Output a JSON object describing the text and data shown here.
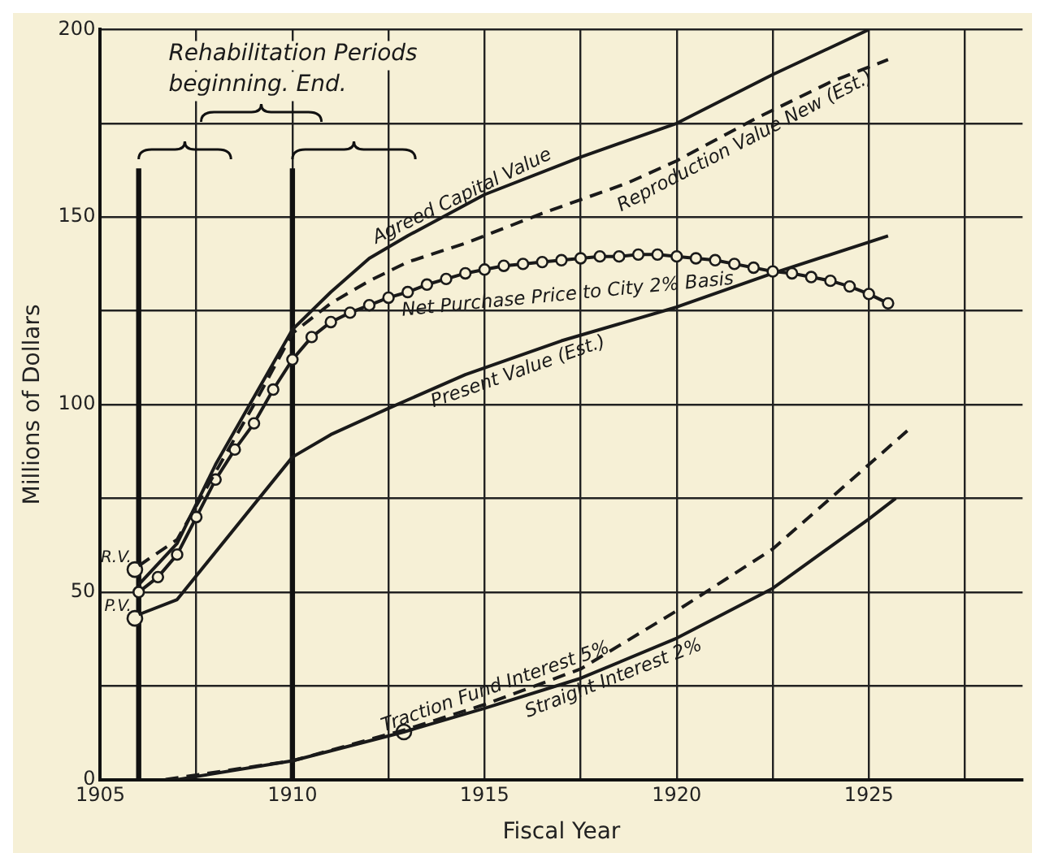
{
  "chart_data": {
    "type": "line",
    "xlabel": "Fiscal Year",
    "ylabel": "Millions of Dollars",
    "xlim": [
      1905,
      1929
    ],
    "ylim": [
      0,
      200
    ],
    "xticks": [
      1905,
      {
        "value": 1907.5,
        "label": null
      },
      1910,
      {
        "value": 1912.5,
        "label": null
      },
      1915,
      {
        "value": 1917.5,
        "label": null
      },
      1920,
      {
        "value": 1922.5,
        "label": null
      },
      1925,
      {
        "value": 1927.5,
        "label": null
      }
    ],
    "yticks": [
      0,
      {
        "value": 25,
        "label": null
      },
      50,
      {
        "value": 75,
        "label": null
      },
      100,
      {
        "value": 125,
        "label": null
      },
      150,
      {
        "value": 175,
        "label": null
      },
      200
    ],
    "grid": true,
    "legend": false,
    "series": [
      {
        "name": "Agreed Capital Value",
        "color": "#1a1a1a",
        "line_style": "solid",
        "marker": "none",
        "x": [
          1906,
          1907,
          1908,
          1909,
          1910,
          1911,
          1912,
          1913,
          1915,
          1917.5,
          1920,
          1922.5,
          1925
        ],
        "values": [
          52,
          63,
          84,
          102,
          120,
          130,
          139,
          145,
          156,
          166,
          175,
          188,
          200
        ]
      },
      {
        "name": "Reproduction Value New (Est.)",
        "color": "#1a1a1a",
        "line_style": "dashed",
        "marker": "none",
        "x": [
          1906,
          1907,
          1908,
          1909,
          1910,
          1911,
          1912,
          1913,
          1914.5,
          1916.5,
          1918.7,
          1920,
          1922,
          1924,
          1925.5
        ],
        "values": [
          57,
          64,
          82,
          100,
          119,
          127,
          133,
          138,
          143,
          151,
          159,
          165,
          176,
          186,
          192
        ]
      },
      {
        "name": "Net Purchase Price to City 2% Basis",
        "color": "#1a1a1a",
        "line_style": "solid",
        "marker": "circle",
        "x": [
          1906,
          1906.5,
          1907,
          1907.5,
          1908,
          1908.5,
          1909,
          1909.5,
          1910,
          1910.5,
          1911,
          1911.5,
          1912,
          1912.5,
          1913,
          1913.5,
          1914,
          1914.5,
          1915,
          1915.5,
          1916,
          1916.5,
          1917,
          1917.5,
          1918,
          1918.5,
          1919,
          1919.5,
          1920,
          1920.5,
          1921,
          1921.5,
          1922,
          1922.5,
          1923,
          1923.5,
          1924,
          1924.5,
          1925,
          1925.5
        ],
        "values": [
          50,
          54,
          60,
          70,
          80,
          88,
          95,
          104,
          112,
          118,
          122,
          124.5,
          126.5,
          128.5,
          130,
          132,
          133.5,
          135,
          136,
          137,
          137.5,
          138,
          138.5,
          139,
          139.5,
          139.5,
          140,
          140,
          139.5,
          139,
          138.5,
          137.5,
          136.5,
          135.5,
          135,
          134,
          133,
          131.5,
          129.5,
          127
        ]
      },
      {
        "name": "Present Value (Est.)",
        "color": "#1a1a1a",
        "line_style": "solid",
        "marker": "none",
        "x": [
          1906,
          1907,
          1910,
          1911,
          1912.5,
          1914.5,
          1917,
          1920,
          1922.5,
          1925.5
        ],
        "values": [
          44,
          48,
          86,
          92,
          99,
          108,
          117,
          126,
          135,
          145
        ]
      },
      {
        "name": "Traction Fund Interest 5%",
        "color": "#1a1a1a",
        "line_style": "dashed",
        "marker": "none",
        "x": [
          1906.7,
          1910,
          1913,
          1915,
          1917.5,
          1920,
          1922.5,
          1924,
          1926
        ],
        "values": [
          0,
          5,
          13.5,
          20,
          29.5,
          45,
          61.5,
          75,
          93
        ]
      },
      {
        "name": "Straight Interest 2%",
        "color": "#1a1a1a",
        "line_style": "solid",
        "marker": "none",
        "x": [
          1907,
          1910,
          1912.9,
          1915,
          1917.5,
          1920,
          1922.5,
          1925,
          1925.7
        ],
        "values": [
          0,
          5,
          12.7,
          19,
          27,
          37.7,
          51,
          69.5,
          75
        ]
      },
      {
        "type": "scatter",
        "color": "#1a1a1a",
        "marker": "circle",
        "x": [
          1905.9,
          1905.9,
          1912.9
        ],
        "values": [
          56,
          43,
          12.7
        ]
      }
    ],
    "ref_lines": [
      {
        "axis": "x",
        "value": 1906
      },
      {
        "axis": "x",
        "value": 1910
      }
    ],
    "annotations": [
      "Rehabilitation Periods\nbeginning. End.",
      {
        "text": "R.V.",
        "x": 1905.9,
        "y": 56
      },
      {
        "text": "P.V.",
        "x": 1905.9,
        "y": 43
      }
    ]
  }
}
